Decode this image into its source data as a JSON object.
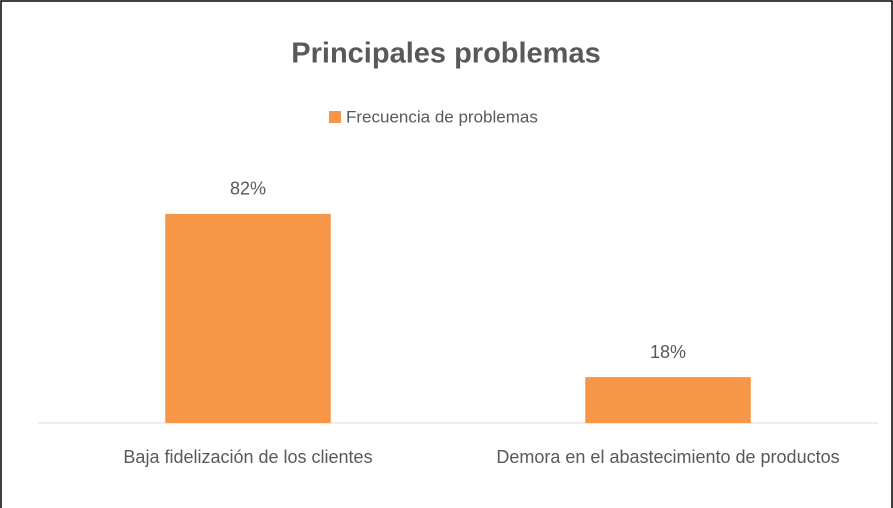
{
  "chart_data": {
    "type": "bar",
    "title": "Principales problemas",
    "categories": [
      "Baja fidelización de los clientes",
      "Demora en el abastecimiento de productos"
    ],
    "series": [
      {
        "name": "Frecuencia de problemas",
        "color": "#F79646",
        "values": [
          82,
          18
        ],
        "value_labels": [
          "82%",
          "18%"
        ]
      }
    ],
    "ylim": [
      0,
      100
    ]
  }
}
